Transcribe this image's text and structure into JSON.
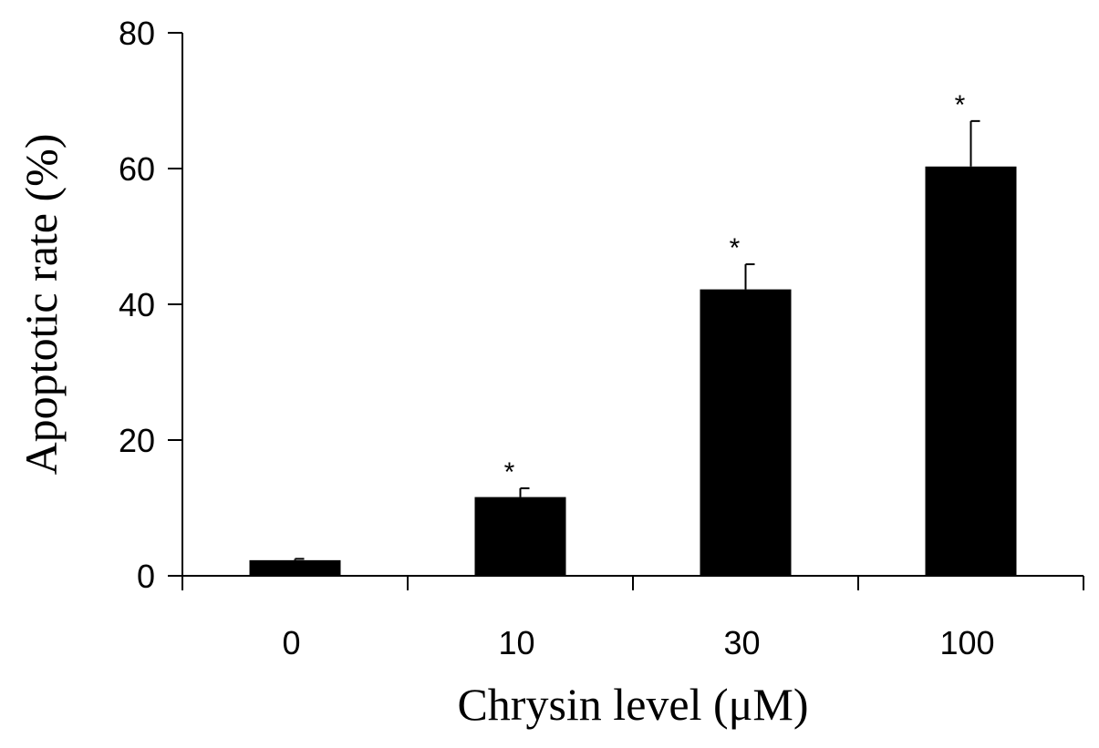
{
  "chart_data": {
    "type": "bar",
    "categories": [
      "0",
      "10",
      "30",
      "100"
    ],
    "values": [
      2.3,
      11.6,
      42.2,
      60.3
    ],
    "errors": [
      0.2,
      1.3,
      3.7,
      6.7
    ],
    "annotations": [
      "",
      "*",
      "*",
      "*"
    ],
    "xlabel": "Chrysin level (μM)",
    "ylabel": "Apoptotic rate (%)",
    "ylim": [
      0,
      80
    ],
    "yticks": [
      0,
      20,
      40,
      60,
      80
    ],
    "grid": false,
    "legend": "none",
    "bar_color": "#000000"
  }
}
